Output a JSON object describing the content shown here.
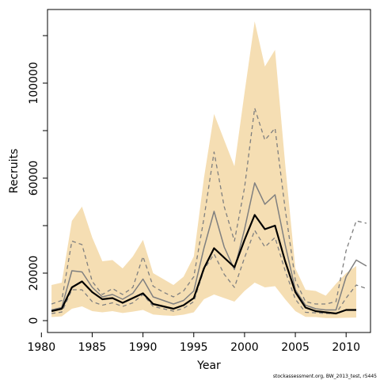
{
  "chart_data": {
    "type": "line",
    "title": "",
    "xlabel": "Year",
    "ylabel": "Recruits",
    "xlim": [
      1980.6,
      2012.4
    ],
    "ylim": [
      -5000,
      131000
    ],
    "x_ticks": [
      1980,
      1985,
      1990,
      1995,
      2000,
      2005,
      2010
    ],
    "y_ticks": [
      0,
      20000,
      60000,
      100000
    ],
    "y_minor_ticks": [
      0,
      20000,
      40000,
      60000,
      80000,
      100000,
      120000
    ],
    "grid": false,
    "footnote": "stockassessment.org, BW_2013_test, r5445",
    "band": {
      "x": [
        1981,
        1982,
        1983,
        1984,
        1985,
        1986,
        1987,
        1988,
        1989,
        1990,
        1991,
        1992,
        1993,
        1994,
        1995,
        1996,
        1997,
        1998,
        1999,
        2000,
        2001,
        2002,
        2003,
        2004,
        2005,
        2006,
        2007,
        2008,
        2009,
        2010,
        2011
      ],
      "upper": [
        15000,
        16000,
        42000,
        48000,
        35000,
        25000,
        25500,
        22000,
        27000,
        34000,
        20000,
        17500,
        15000,
        18500,
        27000,
        60000,
        87000,
        76000,
        65000,
        96000,
        126000,
        107000,
        114000,
        66000,
        22000,
        13000,
        12500,
        10500,
        15500,
        20000,
        23000
      ],
      "lower": [
        1500,
        1800,
        5000,
        6000,
        4000,
        3500,
        4000,
        3200,
        3800,
        4500,
        2600,
        2200,
        2000,
        2500,
        3500,
        9000,
        11000,
        9500,
        8000,
        12500,
        16000,
        14000,
        14500,
        9000,
        4000,
        1600,
        1500,
        1100,
        1100,
        1200,
        1300
      ]
    },
    "series": [
      {
        "style": "thick-solid-black",
        "x": [
          1981,
          1982,
          1983,
          1984,
          1985,
          1986,
          1987,
          1988,
          1989,
          1990,
          1991,
          1992,
          1993,
          1994,
          1995,
          1996,
          1997,
          1998,
          1999,
          2000,
          2001,
          2002,
          2003,
          2004,
          2005,
          2006,
          2007,
          2008,
          2009,
          2010,
          2011
        ],
        "values": [
          4000,
          5000,
          14000,
          16500,
          12000,
          9000,
          9500,
          7500,
          9500,
          11500,
          7000,
          6000,
          5000,
          6500,
          9500,
          22000,
          30500,
          26500,
          22500,
          34000,
          44500,
          38500,
          40000,
          25000,
          12000,
          5500,
          4000,
          3500,
          3000,
          4500,
          4500
        ]
      },
      {
        "style": "thin-solid-grey",
        "x": [
          1981,
          1982,
          1983,
          1984,
          1985,
          1986,
          1987,
          1988,
          1989,
          1990,
          1991,
          1992,
          1993,
          1994,
          1995,
          1996,
          1997,
          1998,
          1999,
          2000,
          2001,
          2002,
          2003,
          2004,
          2005,
          2006,
          2007,
          2008,
          2009,
          2010,
          2011,
          2012
        ],
        "values": [
          4500,
          5500,
          21000,
          20500,
          14000,
          10000,
          11000,
          9000,
          11500,
          17500,
          10000,
          8500,
          7000,
          8500,
          12500,
          30500,
          46000,
          31000,
          21500,
          38500,
          58000,
          49000,
          53000,
          32000,
          13000,
          6500,
          5000,
          4500,
          4500,
          18500,
          25500,
          23000
        ]
      },
      {
        "style": "dashed-grey-upper",
        "x": [
          1981,
          1982,
          1983,
          1984,
          1985,
          1986,
          1987,
          1988,
          1989,
          1990,
          1991,
          1992,
          1993,
          1994,
          1995,
          1996,
          1997,
          1998,
          1999,
          2000,
          2001,
          2002,
          2003,
          2004,
          2005,
          2006,
          2007,
          2008,
          2009,
          2010,
          2011,
          2012
        ],
        "values": [
          7000,
          8500,
          33500,
          32000,
          16500,
          11000,
          13500,
          11000,
          14000,
          27000,
          14500,
          12000,
          10000,
          12500,
          18500,
          43000,
          71000,
          48000,
          33500,
          56000,
          89500,
          76000,
          81000,
          47000,
          17000,
          8000,
          7000,
          7000,
          8000,
          29500,
          42000,
          41000
        ]
      },
      {
        "style": "dashed-grey-lower",
        "x": [
          1981,
          1982,
          1983,
          1984,
          1985,
          1986,
          1987,
          1988,
          1989,
          1990,
          1991,
          1992,
          1993,
          1994,
          1995,
          1996,
          1997,
          1998,
          1999,
          2000,
          2001,
          2002,
          2003,
          2004,
          2005,
          2006,
          2007,
          2008,
          2009,
          2010,
          2011,
          2012
        ],
        "values": [
          3000,
          3600,
          13000,
          13000,
          8000,
          6500,
          7500,
          6000,
          7500,
          11000,
          6000,
          5000,
          4000,
          5200,
          8000,
          21500,
          28000,
          19500,
          14000,
          26500,
          38000,
          31000,
          35000,
          21000,
          9000,
          3500,
          3300,
          3000,
          3000,
          9500,
          15000,
          13500
        ]
      }
    ]
  }
}
